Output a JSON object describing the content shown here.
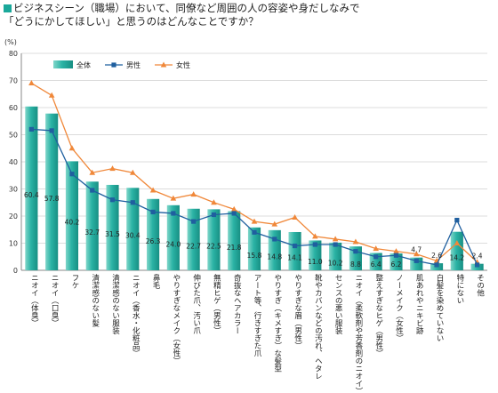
{
  "title": {
    "line1": "ビジネスシーン（職場）において、同僚など周囲の人の容姿や身だしなみで",
    "line2": "「どうにかしてほしい」と思うのはどんなことですか？"
  },
  "colors": {
    "bar": "#2bb3a5",
    "male_line": "#1f5f9f",
    "female_line": "#f0883a",
    "grid": "#dcdcdc",
    "title_square": "#1aa89a"
  },
  "chart_data": {
    "type": "bar",
    "y_unit": "(%)",
    "ylim": [
      0,
      80
    ],
    "yticks": [
      0,
      10,
      20,
      30,
      40,
      50,
      60,
      70,
      80
    ],
    "grid": true,
    "legend_position": "top-center",
    "categories": [
      "ニオイ（体臭）",
      "ニオイ（口臭）",
      "フケ",
      "清潔感のない髪",
      "清潔感のない服装",
      "ニオイ（香水・化粧品）",
      "鼻毛",
      "やりすぎなメイク（女性）",
      "伸びた爪、汚い爪",
      "無精ヒゲ（男性）",
      "奇抜なヘアカラー",
      "アート等、行きすぎた爪",
      "やりすぎ（キメすぎ）な髪型",
      "やりすぎな眉（男性）",
      "靴やカバンなどの汚れ、ヘタレ",
      "センスの悪い服装",
      "ニオイ（柔軟剤や芳香剤のニオイ）",
      "整えすぎなヒゲ（男性）",
      "ノーメイク（女性）",
      "肌あれやニキビ跡",
      "白髪を染めていない",
      "特にない",
      "その他"
    ],
    "series": [
      {
        "name": "全体",
        "type": "bar",
        "values": [
          60.4,
          57.8,
          40.2,
          32.7,
          31.5,
          30.4,
          26.3,
          24.0,
          22.7,
          22.5,
          21.8,
          15.8,
          14.8,
          14.1,
          11.0,
          10.2,
          8.8,
          6.4,
          6.2,
          4.7,
          2.6,
          14.2,
          2.4
        ]
      },
      {
        "name": "男性",
        "type": "line",
        "values": [
          52,
          51.5,
          35.5,
          29.5,
          26,
          25,
          21.5,
          21,
          18,
          20.5,
          21,
          14,
          11.5,
          9,
          9.5,
          9.5,
          7,
          5,
          5.5,
          3.5,
          2,
          18.5,
          2
        ]
      },
      {
        "name": "女性",
        "type": "line",
        "values": [
          69,
          64.5,
          45,
          36,
          37.5,
          36,
          29.5,
          26.5,
          28,
          25,
          22.5,
          18,
          17,
          19.5,
          12.5,
          11.5,
          10.5,
          8,
          7,
          6,
          3.5,
          10,
          3
        ]
      }
    ]
  }
}
